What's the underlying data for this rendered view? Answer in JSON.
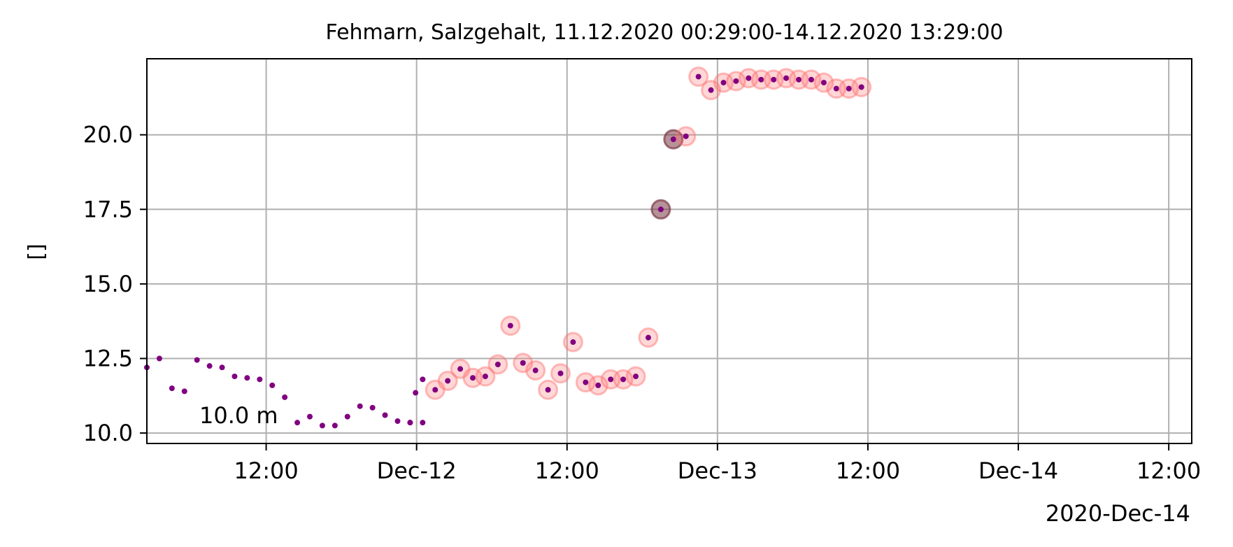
{
  "chart_data": {
    "type": "scatter",
    "title": "Fehmarn, Salzgehalt, 11.12.2020 00:29:00-14.12.2020 13:29:00",
    "ylabel": "[]",
    "xlabel": "",
    "annotation": "10.0 m",
    "x_offset_label": "2020-Dec-14",
    "xlim": [
      "2020-12-11 02:29",
      "2020-12-14 13:50"
    ],
    "ylim": [
      9.65,
      22.55
    ],
    "grid": true,
    "x_ticks": [
      {
        "t": "2020-12-11 12:00",
        "label": "12:00"
      },
      {
        "t": "2020-12-12 00:00",
        "label": "Dec-12"
      },
      {
        "t": "2020-12-12 12:00",
        "label": "12:00"
      },
      {
        "t": "2020-12-13 00:00",
        "label": "Dec-13"
      },
      {
        "t": "2020-12-13 12:00",
        "label": "12:00"
      },
      {
        "t": "2020-12-14 00:00",
        "label": "Dec-14"
      },
      {
        "t": "2020-12-14 12:00",
        "label": "12:00"
      }
    ],
    "y_ticks": [
      {
        "v": 10.0,
        "label": "10.0"
      },
      {
        "v": 12.5,
        "label": "12.5"
      },
      {
        "v": 15.0,
        "label": "15.0"
      },
      {
        "v": 17.5,
        "label": "17.5"
      },
      {
        "v": 20.0,
        "label": "20.0"
      }
    ],
    "colors": {
      "point": "#800080",
      "flag_ring": "#ff6e6e",
      "flag_dark": "#7a3a46",
      "grid": "#b0b0b0"
    },
    "series": [
      {
        "points": [
          {
            "t": "2020-12-11 02:29",
            "y": 12.2
          },
          {
            "t": "2020-12-11 03:29",
            "y": 12.5
          },
          {
            "t": "2020-12-11 04:29",
            "y": 11.5
          },
          {
            "t": "2020-12-11 05:29",
            "y": 11.4
          },
          {
            "t": "2020-12-11 06:29",
            "y": 12.45
          },
          {
            "t": "2020-12-11 07:29",
            "y": 12.25
          },
          {
            "t": "2020-12-11 08:29",
            "y": 12.2
          },
          {
            "t": "2020-12-11 09:29",
            "y": 11.9
          },
          {
            "t": "2020-12-11 10:29",
            "y": 11.85
          },
          {
            "t": "2020-12-11 11:29",
            "y": 11.8
          },
          {
            "t": "2020-12-11 12:29",
            "y": 11.6
          },
          {
            "t": "2020-12-11 13:29",
            "y": 11.2
          },
          {
            "t": "2020-12-11 14:29",
            "y": 10.35
          },
          {
            "t": "2020-12-11 15:29",
            "y": 10.55
          },
          {
            "t": "2020-12-11 16:29",
            "y": 10.25
          },
          {
            "t": "2020-12-11 17:29",
            "y": 10.25
          },
          {
            "t": "2020-12-11 18:29",
            "y": 10.55
          },
          {
            "t": "2020-12-11 19:29",
            "y": 10.9
          },
          {
            "t": "2020-12-11 20:29",
            "y": 10.85
          },
          {
            "t": "2020-12-11 21:29",
            "y": 10.6
          },
          {
            "t": "2020-12-11 22:29",
            "y": 10.4
          },
          {
            "t": "2020-12-11 23:29",
            "y": 10.35
          },
          {
            "t": "2020-12-12 00:29",
            "y": 10.35
          },
          {
            "t": "2020-12-11 23:29",
            "y": 10.35
          },
          {
            "t": "2020-12-11 23:55",
            "y": 11.35
          },
          {
            "t": "2020-12-12 00:29",
            "y": 11.8
          }
        ]
      },
      {
        "points": [
          {
            "t": "2020-12-12 01:29",
            "y": 11.45,
            "flag": "ring"
          },
          {
            "t": "2020-12-12 02:29",
            "y": 11.75,
            "flag": "ring"
          },
          {
            "t": "2020-12-12 03:29",
            "y": 12.15,
            "flag": "ring"
          },
          {
            "t": "2020-12-12 04:29",
            "y": 11.85,
            "flag": "ring"
          },
          {
            "t": "2020-12-12 05:29",
            "y": 11.9,
            "flag": "ring"
          },
          {
            "t": "2020-12-12 06:29",
            "y": 12.3,
            "flag": "ring"
          },
          {
            "t": "2020-12-12 07:29",
            "y": 13.6,
            "flag": "ring"
          },
          {
            "t": "2020-12-12 08:29",
            "y": 12.35,
            "flag": "ring"
          },
          {
            "t": "2020-12-12 09:29",
            "y": 12.1,
            "flag": "ring"
          },
          {
            "t": "2020-12-12 10:29",
            "y": 11.45,
            "flag": "ring"
          },
          {
            "t": "2020-12-12 11:29",
            "y": 12.0,
            "flag": "ring"
          },
          {
            "t": "2020-12-12 12:29",
            "y": 13.05,
            "flag": "ring"
          },
          {
            "t": "2020-12-12 13:29",
            "y": 11.7,
            "flag": "ring"
          },
          {
            "t": "2020-12-12 14:29",
            "y": 11.6,
            "flag": "ring"
          },
          {
            "t": "2020-12-12 15:29",
            "y": 11.8,
            "flag": "ring"
          },
          {
            "t": "2020-12-12 16:29",
            "y": 11.8,
            "flag": "ring"
          },
          {
            "t": "2020-12-12 17:29",
            "y": 11.9,
            "flag": "ring"
          },
          {
            "t": "2020-12-12 18:29",
            "y": 13.2,
            "flag": "ring"
          },
          {
            "t": "2020-12-12 19:29",
            "y": 17.5,
            "flag": "dark"
          },
          {
            "t": "2020-12-12 20:29",
            "y": 19.85,
            "flag": "dark"
          },
          {
            "t": "2020-12-12 21:29",
            "y": 19.95,
            "flag": "ring"
          },
          {
            "t": "2020-12-12 22:29",
            "y": 21.95,
            "flag": "ring"
          },
          {
            "t": "2020-12-12 23:29",
            "y": 21.5,
            "flag": "ring"
          },
          {
            "t": "2020-12-13 00:29",
            "y": 21.75,
            "flag": "ring"
          },
          {
            "t": "2020-12-13 01:29",
            "y": 21.8,
            "flag": "ring"
          },
          {
            "t": "2020-12-13 02:29",
            "y": 21.9,
            "flag": "ring"
          },
          {
            "t": "2020-12-13 03:29",
            "y": 21.85,
            "flag": "ring"
          },
          {
            "t": "2020-12-13 04:29",
            "y": 21.85,
            "flag": "ring"
          },
          {
            "t": "2020-12-13 05:29",
            "y": 21.9,
            "flag": "ring"
          },
          {
            "t": "2020-12-13 06:29",
            "y": 21.85,
            "flag": "ring"
          },
          {
            "t": "2020-12-13 07:29",
            "y": 21.85,
            "flag": "ring"
          },
          {
            "t": "2020-12-13 08:29",
            "y": 21.75,
            "flag": "ring"
          },
          {
            "t": "2020-12-13 09:29",
            "y": 21.55,
            "flag": "ring"
          },
          {
            "t": "2020-12-13 10:29",
            "y": 21.55,
            "flag": "ring"
          },
          {
            "t": "2020-12-13 11:29",
            "y": 21.6,
            "flag": "ring"
          }
        ]
      }
    ]
  }
}
